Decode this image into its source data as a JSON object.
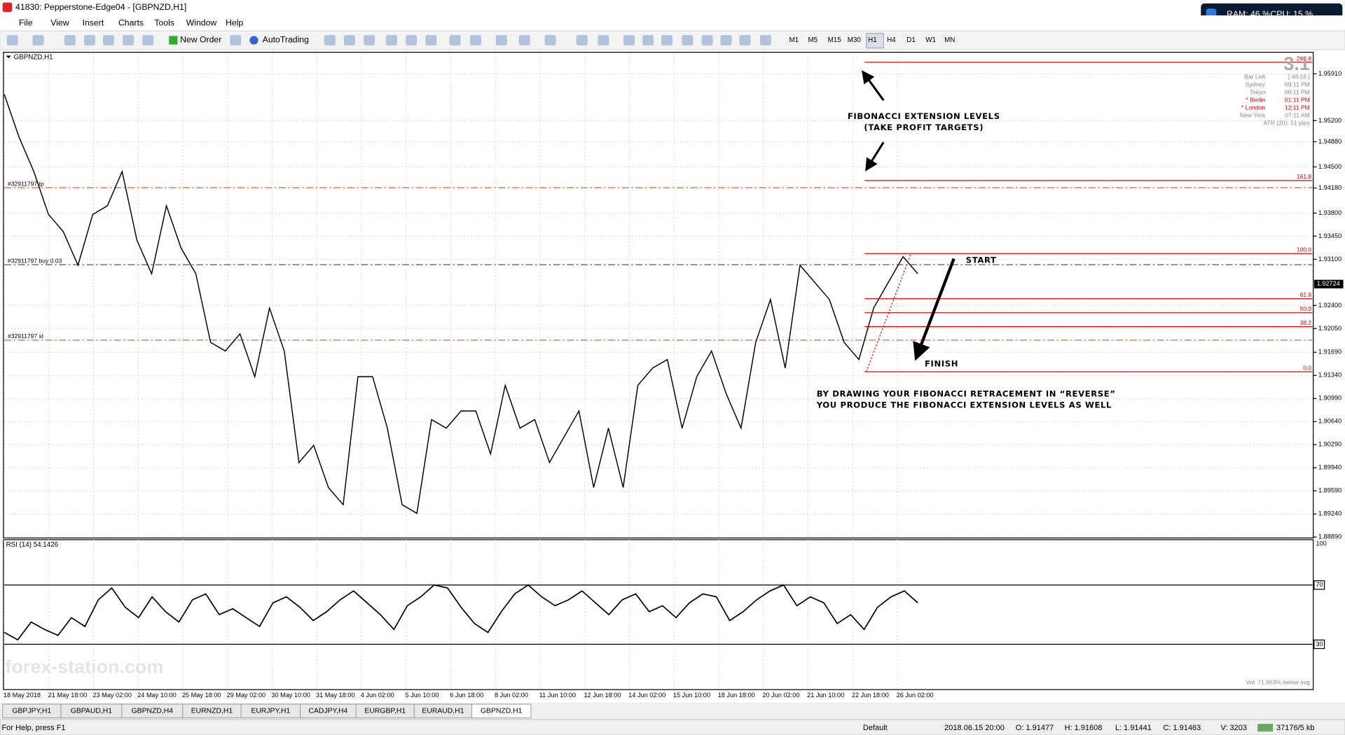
{
  "window": {
    "title": "41830: Pepperstone-Edge04 - [GBPNZD,H1]",
    "ram": "RAM: 46 %",
    "cpu": "CPU: 15 %"
  },
  "menu": [
    "File",
    "View",
    "Insert",
    "Charts",
    "Tools",
    "Window",
    "Help"
  ],
  "toolbar": {
    "new_order": "New Order",
    "autotrading": "AutoTrading",
    "timeframes": [
      "M1",
      "M5",
      "M15",
      "M30",
      "H1",
      "H4",
      "D1",
      "W1",
      "MN"
    ]
  },
  "chart": {
    "symbol": "GBPNZD,H1",
    "ylim": [
      1.8885,
      1.9625
    ],
    "yticks": [
      {
        "value": 1.9591,
        "label": "1.95910"
      },
      {
        "value": 1.952,
        "label": "1.95200"
      },
      {
        "value": 1.9488,
        "label": "1.94880"
      },
      {
        "value": 1.945,
        "label": "1.94500"
      },
      {
        "value": 1.9418,
        "label": "1.94180"
      },
      {
        "value": 1.938,
        "label": "1.93800"
      },
      {
        "value": 1.9345,
        "label": "1.93450"
      },
      {
        "value": 1.931,
        "label": "1.93100"
      },
      {
        "value": 1.924,
        "label": "1.92400"
      },
      {
        "value": 1.9205,
        "label": "1.92050"
      },
      {
        "value": 1.9169,
        "label": "1.91690"
      },
      {
        "value": 1.9134,
        "label": "1.91340"
      },
      {
        "value": 1.9099,
        "label": "1.90990"
      },
      {
        "value": 1.9064,
        "label": "1.90640"
      },
      {
        "value": 1.9029,
        "label": "1.90290"
      },
      {
        "value": 1.8994,
        "label": "1.89940"
      },
      {
        "value": 1.8959,
        "label": "1.89590"
      },
      {
        "value": 1.8924,
        "label": "1.89240"
      },
      {
        "value": 1.8889,
        "label": "1.88890"
      }
    ],
    "current_price": 1.92724,
    "price": [
      1.956,
      1.9495,
      1.9443,
      1.9378,
      1.9352,
      1.9301,
      1.9378,
      1.9391,
      1.9443,
      1.9339,
      1.9288,
      1.9391,
      1.9327,
      1.9288,
      1.9184,
      1.9171,
      1.9197,
      1.9132,
      1.9236,
      1.9171,
      1.9002,
      1.9028,
      1.8964,
      1.8938,
      1.9132,
      1.9132,
      1.9054,
      1.8938,
      1.8925,
      1.9067,
      1.9054,
      1.908,
      1.908,
      1.9015,
      1.9119,
      1.9054,
      1.9067,
      1.9002,
      1.9041,
      1.908,
      1.8964,
      1.9054,
      1.8964,
      1.9119,
      1.9145,
      1.9158,
      1.9054,
      1.9132,
      1.9171,
      1.9106,
      1.9054,
      1.9184,
      1.9249,
      1.9145,
      1.9301,
      1.9275,
      1.9249,
      1.9184,
      1.9158,
      1.9236,
      1.9275,
      1.9314,
      1.9288
    ],
    "dates": [
      "18 May 2018",
      "21 May 18:00",
      "23 May 02:00",
      "24 May 10:00",
      "25 May 18:00",
      "29 May 02:00",
      "30 May 10:00",
      "31 May 18:00",
      "4 Jun 02:00",
      "5 Jun 10:00",
      "6 Jun 18:00",
      "8 Jun 02:00",
      "11 Jun 10:00",
      "12 Jun 18:00",
      "14 Jun 02:00",
      "15 Jun 10:00",
      "18 Jun 18:00",
      "20 Jun 02:00",
      "21 Jun 10:00",
      "22 Jun 18:00",
      "26 Jun 02:00"
    ],
    "orders": {
      "tp": "#32911797 tp",
      "buy": "#32911797 buy 0.03",
      "sl": "#32911797 sl"
    },
    "fib_levels": [
      261.8,
      161.8,
      {
        "value": 100,
        "label": "100.0"
      },
      61.8,
      {
        "value": 50,
        "label": "50.0"
      },
      38.2,
      {
        "value": 0,
        "label": "0.0"
      }
    ],
    "info_panel": {
      "version": "3.1",
      "rows": [
        {
          "label": "Bar Left",
          "value": "[ 48:16 ]",
          "color": "#888888"
        },
        {
          "label": "Sydney",
          "value": "09:11 PM",
          "color": "#888888"
        },
        {
          "label": "Tokyo",
          "value": "08:11 PM",
          "color": "#888888"
        },
        {
          "label": "* Berlin",
          "value": "01:11 PM",
          "color": "#e00000"
        },
        {
          "label": "* London",
          "value": "12:11 PM",
          "color": "#e00000"
        },
        {
          "label": "New York",
          "value": "07:11 AM",
          "color": "#888888"
        }
      ],
      "atr": "ATR (20): 51 pips"
    },
    "annotations": {
      "ext1": "FIBONACCI EXTENSION LEVELS",
      "ext2": "(TAKE PROFIT TARGETS)",
      "start": "START",
      "finish": "FINISH",
      "note1": "BY DRAWING YOUR FIBONACCI RETRACEMENT IN “REVERSE”",
      "note2": "YOU PRODUCE THE FIBONACCI EXTENSION LEVELS AS WELL"
    },
    "watermark": "forex-station.com"
  },
  "rsi": {
    "label": "RSI (14) 54.1426",
    "ylim": [
      0,
      100
    ],
    "yticks": [
      100,
      70,
      30
    ],
    "values": [
      38,
      33,
      45,
      40,
      36,
      48,
      42,
      60,
      68,
      55,
      48,
      62,
      52,
      45,
      60,
      64,
      50,
      54,
      48,
      42,
      58,
      62,
      55,
      46,
      52,
      60,
      66,
      58,
      50,
      40,
      56,
      62,
      70,
      68,
      55,
      44,
      38,
      52,
      64,
      70,
      62,
      56,
      60,
      66,
      58,
      50,
      60,
      64,
      52,
      56,
      48,
      58,
      64,
      62,
      46,
      52,
      60,
      66,
      70,
      56,
      62,
      58,
      44,
      50,
      40,
      55,
      62,
      66,
      58
    ],
    "volume_note": "Vol: 71.963% below avg"
  },
  "tabs": [
    "GBPJPY,H1",
    "GBPAUD,H1",
    "GBPNZD,H4",
    "EURNZD,H1",
    "EURJPY,H1",
    "CADJPY,H4",
    "EURGBP,H1",
    "EURAUD,H1",
    "GBPNZD,H1"
  ],
  "status": {
    "help": "For Help, press F1",
    "profile": "Default",
    "time": "2018.06.15 20:00",
    "open": "O: 1.91477",
    "high": "H: 1.91608",
    "low": "L: 1.91441",
    "close": "C: 1.91463",
    "volume": "V: 3203",
    "traffic": "37176/5 kb"
  }
}
